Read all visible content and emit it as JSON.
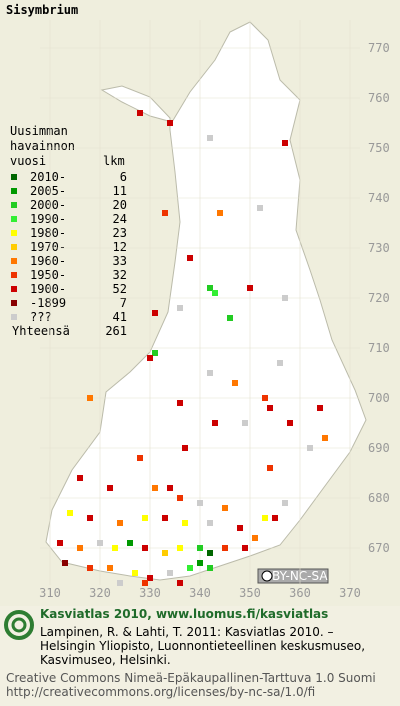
{
  "title": "Sisymbrium",
  "legend": {
    "heading": [
      "Uusimman",
      "havainnon"
    ],
    "period_heading": "vuosi",
    "count_heading": "lkm",
    "items": [
      {
        "label": "2010-",
        "count": 6,
        "color": "#006600"
      },
      {
        "label": "2005-",
        "count": 11,
        "color": "#009900"
      },
      {
        "label": "2000-",
        "count": 20,
        "color": "#22cc22"
      },
      {
        "label": "1990-",
        "count": 24,
        "color": "#33ee33"
      },
      {
        "label": "1980-",
        "count": 23,
        "color": "#ffff00"
      },
      {
        "label": "1970-",
        "count": 12,
        "color": "#ffcc00"
      },
      {
        "label": "1960-",
        "count": 33,
        "color": "#ff7700"
      },
      {
        "label": "1950-",
        "count": 32,
        "color": "#ee3300"
      },
      {
        "label": "1900-",
        "count": 52,
        "color": "#cc0000"
      },
      {
        "label": "-1899",
        "count": 7,
        "color": "#880000"
      },
      {
        "label": "???",
        "count": 41,
        "color": "#cccccc"
      }
    ],
    "total_label": "Yhteensä",
    "total": 261
  },
  "y_ticks": [
    770,
    760,
    750,
    740,
    730,
    720,
    710,
    700,
    690,
    680,
    670
  ],
  "x_ticks": [
    310,
    320,
    330,
    340,
    350,
    360,
    370
  ],
  "badge": "BY-NC-SA",
  "footer": {
    "headline": "Kasviatlas 2010, www.luomus.fi/kasviatlas",
    "citation": [
      "Lampinen, R. & Lahti, T. 2011: Kasviatlas 2010. –",
      "Helsingin Yliopisto, Luonnontieteellinen keskusmuseo,",
      "Kasvimuseo, Helsinki."
    ],
    "license": [
      "Creative Commons Nimeä-Epäkaupallinen-Tarttuva 1.0 Suomi",
      "http://creativecommons.org/licenses/by-nc-sa/1.0/fi"
    ]
  },
  "observations": [
    {
      "x": 334,
      "y": 755,
      "period": 8
    },
    {
      "x": 328,
      "y": 757,
      "period": 8
    },
    {
      "x": 342,
      "y": 752,
      "period": 10
    },
    {
      "x": 357,
      "y": 751,
      "period": 8
    },
    {
      "x": 352,
      "y": 738,
      "period": 10
    },
    {
      "x": 344,
      "y": 737,
      "period": 6
    },
    {
      "x": 333,
      "y": 737,
      "period": 7
    },
    {
      "x": 338,
      "y": 728,
      "period": 8
    },
    {
      "x": 342,
      "y": 722,
      "period": 2
    },
    {
      "x": 343,
      "y": 721,
      "period": 3
    },
    {
      "x": 357,
      "y": 720,
      "period": 10
    },
    {
      "x": 350,
      "y": 722,
      "period": 8
    },
    {
      "x": 331,
      "y": 717,
      "period": 8
    },
    {
      "x": 336,
      "y": 718,
      "period": 10
    },
    {
      "x": 346,
      "y": 716,
      "period": 2
    },
    {
      "x": 331,
      "y": 709,
      "period": 2
    },
    {
      "x": 330,
      "y": 708,
      "period": 8
    },
    {
      "x": 342,
      "y": 705,
      "period": 10
    },
    {
      "x": 356,
      "y": 707,
      "period": 10
    },
    {
      "x": 347,
      "y": 703,
      "period": 6
    },
    {
      "x": 353,
      "y": 700,
      "period": 7
    },
    {
      "x": 354,
      "y": 698,
      "period": 8
    },
    {
      "x": 364,
      "y": 698,
      "period": 8
    },
    {
      "x": 318,
      "y": 700,
      "period": 6
    },
    {
      "x": 336,
      "y": 699,
      "period": 8
    },
    {
      "x": 343,
      "y": 695,
      "period": 8
    },
    {
      "x": 349,
      "y": 695,
      "period": 10
    },
    {
      "x": 358,
      "y": 695,
      "period": 8
    },
    {
      "x": 365,
      "y": 692,
      "period": 6
    },
    {
      "x": 362,
      "y": 690,
      "period": 10
    },
    {
      "x": 337,
      "y": 690,
      "period": 8
    },
    {
      "x": 328,
      "y": 688,
      "period": 7
    },
    {
      "x": 354,
      "y": 686,
      "period": 7
    },
    {
      "x": 316,
      "y": 684,
      "period": 8
    },
    {
      "x": 322,
      "y": 682,
      "period": 8
    },
    {
      "x": 331,
      "y": 682,
      "period": 6
    },
    {
      "x": 334,
      "y": 682,
      "period": 8
    },
    {
      "x": 336,
      "y": 680,
      "period": 7
    },
    {
      "x": 340,
      "y": 679,
      "period": 10
    },
    {
      "x": 345,
      "y": 678,
      "period": 6
    },
    {
      "x": 357,
      "y": 679,
      "period": 10
    },
    {
      "x": 353,
      "y": 676,
      "period": 4
    },
    {
      "x": 355,
      "y": 676,
      "period": 8
    },
    {
      "x": 314,
      "y": 677,
      "period": 4
    },
    {
      "x": 318,
      "y": 676,
      "period": 8
    },
    {
      "x": 324,
      "y": 675,
      "period": 6
    },
    {
      "x": 329,
      "y": 676,
      "period": 4
    },
    {
      "x": 333,
      "y": 676,
      "period": 8
    },
    {
      "x": 337,
      "y": 675,
      "period": 4
    },
    {
      "x": 342,
      "y": 675,
      "period": 10
    },
    {
      "x": 348,
      "y": 674,
      "period": 8
    },
    {
      "x": 351,
      "y": 672,
      "period": 6
    },
    {
      "x": 312,
      "y": 671,
      "period": 8
    },
    {
      "x": 316,
      "y": 670,
      "period": 6
    },
    {
      "x": 320,
      "y": 671,
      "period": 10
    },
    {
      "x": 323,
      "y": 670,
      "period": 4
    },
    {
      "x": 326,
      "y": 671,
      "period": 1
    },
    {
      "x": 329,
      "y": 670,
      "period": 8
    },
    {
      "x": 333,
      "y": 669,
      "period": 5
    },
    {
      "x": 336,
      "y": 670,
      "period": 4
    },
    {
      "x": 340,
      "y": 670,
      "period": 2
    },
    {
      "x": 342,
      "y": 669,
      "period": 0
    },
    {
      "x": 345,
      "y": 670,
      "period": 7
    },
    {
      "x": 349,
      "y": 670,
      "period": 8
    },
    {
      "x": 313,
      "y": 667,
      "period": 9
    },
    {
      "x": 318,
      "y": 666,
      "period": 7
    },
    {
      "x": 322,
      "y": 666,
      "period": 6
    },
    {
      "x": 327,
      "y": 665,
      "period": 4
    },
    {
      "x": 330,
      "y": 664,
      "period": 8
    },
    {
      "x": 334,
      "y": 665,
      "period": 10
    },
    {
      "x": 338,
      "y": 666,
      "period": 3
    },
    {
      "x": 340,
      "y": 667,
      "period": 1
    },
    {
      "x": 342,
      "y": 666,
      "period": 2
    },
    {
      "x": 324,
      "y": 663,
      "period": 10
    },
    {
      "x": 329,
      "y": 663,
      "period": 7
    },
    {
      "x": 336,
      "y": 663,
      "period": 8
    }
  ]
}
